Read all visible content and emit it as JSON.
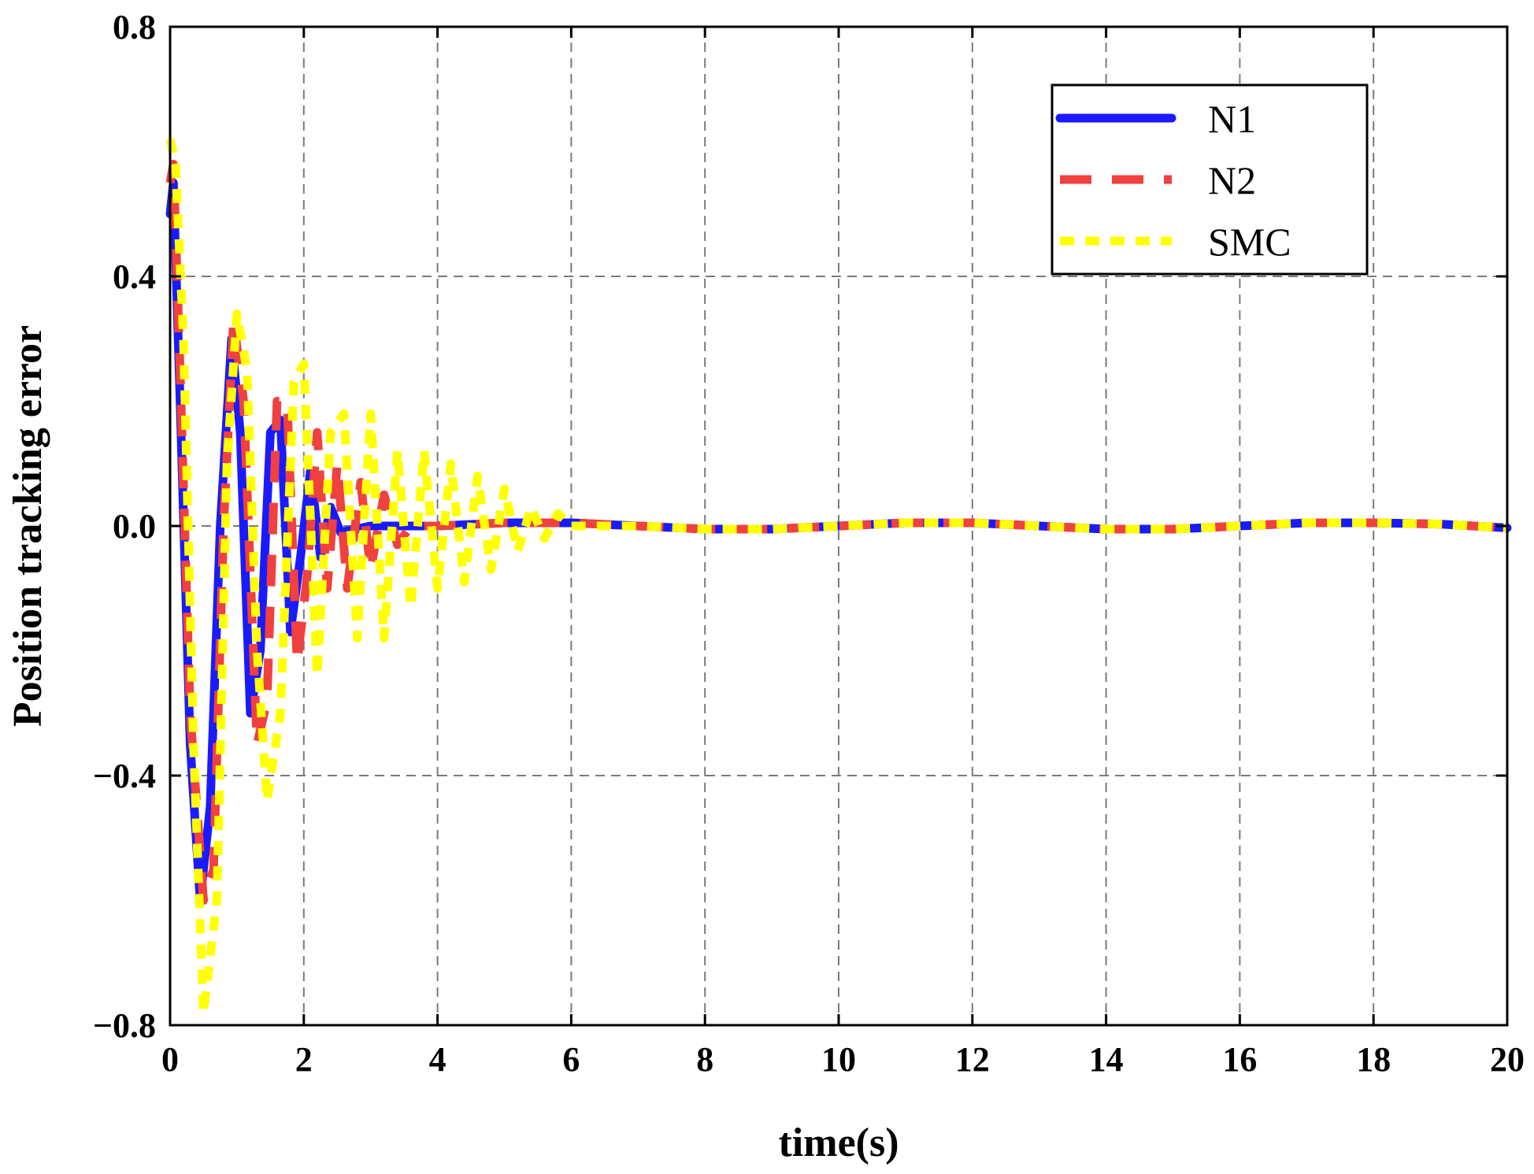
{
  "chart_data": {
    "type": "line",
    "title": "",
    "xlabel": "time(s)",
    "ylabel": "Position tracking error",
    "xlim": [
      0,
      20
    ],
    "ylim": [
      -0.8,
      0.8
    ],
    "xticks": [
      0,
      2,
      4,
      6,
      8,
      10,
      12,
      14,
      16,
      18,
      20
    ],
    "yticks": [
      -0.8,
      -0.4,
      0.0,
      0.4,
      0.8
    ],
    "xtick_labels": [
      "0",
      "2",
      "4",
      "6",
      "8",
      "10",
      "12",
      "14",
      "16",
      "18",
      "20"
    ],
    "ytick_labels": [
      "−0.8",
      "−0.4",
      "0.0",
      "0.4",
      "0.8"
    ],
    "grid": true,
    "legend_position": "top-right",
    "series": [
      {
        "name": "N1",
        "color": "#1a1aff",
        "style": "solid",
        "x": [
          0,
          0.05,
          0.15,
          0.3,
          0.45,
          0.6,
          0.75,
          0.92,
          1.05,
          1.2,
          1.35,
          1.5,
          1.65,
          1.8,
          1.95,
          2.1,
          2.25,
          2.4,
          2.55,
          3.0,
          4.0,
          5.0,
          6.0,
          7.0,
          8.0,
          9.0,
          10.0,
          11.0,
          12.0,
          13.0,
          14.0,
          15.0,
          16.0,
          17.0,
          18.0,
          19.0,
          20.0
        ],
        "y": [
          0.5,
          0.55,
          0.2,
          -0.35,
          -0.6,
          -0.45,
          0.0,
          0.3,
          0.15,
          -0.3,
          -0.2,
          0.15,
          0.17,
          -0.17,
          -0.05,
          0.09,
          -0.05,
          0.03,
          -0.01,
          0.0,
          0.0,
          0.005,
          0.005,
          0.0,
          -0.005,
          -0.005,
          0.0,
          0.005,
          0.005,
          0.0,
          -0.005,
          -0.005,
          0.0,
          0.005,
          0.005,
          0.003,
          -0.003
        ]
      },
      {
        "name": "N2",
        "color": "#f04040",
        "style": "dashed",
        "x": [
          0,
          0.05,
          0.15,
          0.3,
          0.5,
          0.65,
          0.8,
          0.95,
          1.1,
          1.3,
          1.45,
          1.6,
          1.75,
          1.9,
          2.05,
          2.2,
          2.35,
          2.5,
          2.65,
          2.85,
          3.0,
          3.2,
          3.4,
          3.6,
          4.0,
          5.0,
          6.0,
          7.0,
          8.0,
          9.0,
          10.0,
          11.0,
          12.0,
          13.0,
          14.0,
          15.0,
          16.0,
          17.0,
          18.0,
          19.0,
          20.0
        ],
        "y": [
          0.55,
          0.58,
          0.25,
          -0.3,
          -0.6,
          -0.55,
          0.0,
          0.33,
          0.2,
          -0.35,
          -0.28,
          0.2,
          0.2,
          -0.22,
          -0.08,
          0.15,
          -0.1,
          0.1,
          -0.1,
          0.07,
          -0.07,
          0.05,
          -0.03,
          0.0,
          0.0,
          0.005,
          0.005,
          0.0,
          -0.005,
          -0.005,
          0.0,
          0.005,
          0.005,
          0.0,
          -0.005,
          -0.005,
          0.0,
          0.005,
          0.005,
          0.003,
          -0.003
        ]
      },
      {
        "name": "SMC",
        "color": "#ffff00",
        "style": "dotted",
        "x": [
          0,
          0.08,
          0.2,
          0.35,
          0.5,
          0.7,
          0.85,
          1.0,
          1.15,
          1.3,
          1.45,
          1.65,
          1.85,
          2.0,
          2.2,
          2.4,
          2.6,
          2.8,
          3.0,
          3.2,
          3.4,
          3.6,
          3.8,
          4.0,
          4.2,
          4.4,
          4.6,
          4.8,
          5.0,
          5.2,
          5.4,
          5.6,
          5.8,
          6.0,
          6.2,
          7.0,
          8.0,
          9.0,
          10.0,
          11.0,
          12.0,
          13.0,
          14.0,
          15.0,
          16.0,
          17.0,
          18.0,
          19.0,
          20.0
        ],
        "y": [
          0.62,
          0.58,
          0.3,
          -0.35,
          -0.78,
          -0.6,
          0.1,
          0.34,
          0.25,
          -0.2,
          -0.44,
          -0.3,
          0.23,
          0.26,
          -0.24,
          0.15,
          0.18,
          -0.18,
          0.18,
          -0.18,
          0.12,
          -0.13,
          0.12,
          -0.1,
          0.1,
          -0.09,
          0.08,
          -0.07,
          0.06,
          -0.04,
          0.03,
          -0.02,
          0.02,
          0.0,
          0.0,
          0.0,
          -0.005,
          -0.005,
          0.0,
          0.005,
          0.005,
          0.0,
          -0.005,
          -0.005,
          0.0,
          0.005,
          0.005,
          0.003,
          -0.003
        ]
      }
    ]
  },
  "legend": {
    "items": [
      "N1",
      "N2",
      "SMC"
    ]
  }
}
